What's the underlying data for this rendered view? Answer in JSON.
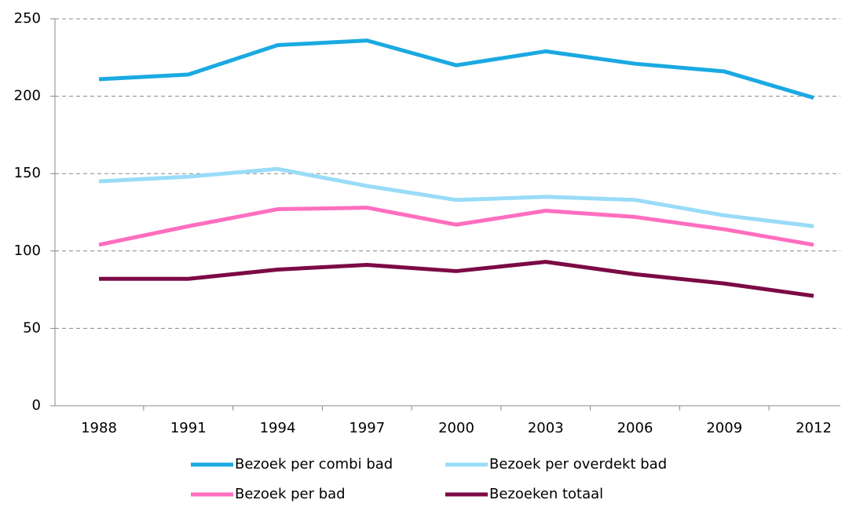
{
  "chart_data": {
    "type": "line",
    "categories": [
      "1988",
      "1991",
      "1994",
      "1997",
      "2000",
      "2003",
      "2006",
      "2009",
      "2012"
    ],
    "series": [
      {
        "name": "Bezoek per combi bad",
        "color": "#1aa9e1",
        "values": [
          211,
          214,
          233,
          236,
          220,
          229,
          221,
          216,
          199
        ]
      },
      {
        "name": "Bezoek per overdekt bad",
        "color": "#99dcf8",
        "values": [
          145,
          148,
          153,
          142,
          133,
          135,
          133,
          123,
          116
        ]
      },
      {
        "name": "Bezoek per bad",
        "color": "#ff6ebf",
        "values": [
          104,
          116,
          127,
          128,
          117,
          126,
          122,
          114,
          104
        ]
      },
      {
        "name": "Bezoeken totaal",
        "color": "#7b0a45",
        "values": [
          82,
          82,
          88,
          91,
          87,
          93,
          85,
          79,
          71
        ]
      }
    ],
    "ylim": [
      0,
      250
    ],
    "yticks": [
      0,
      50,
      100,
      150,
      200,
      250
    ],
    "grid": true
  }
}
